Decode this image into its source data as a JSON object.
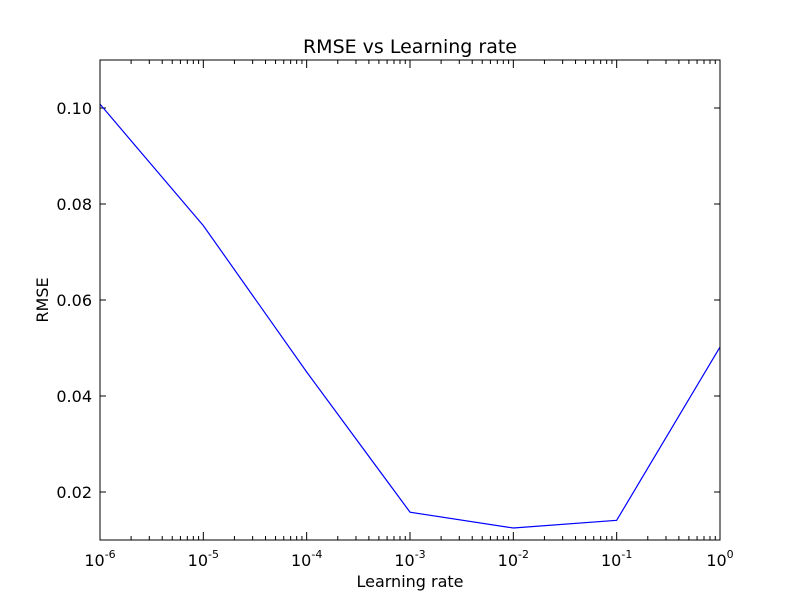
{
  "chart_data": {
    "type": "line",
    "title": "RMSE vs Learning rate",
    "xlabel": "Learning rate",
    "ylabel": "RMSE",
    "xscale": "log",
    "xlim": [
      1e-06,
      1
    ],
    "ylim": [
      0.01,
      0.11
    ],
    "grid": false,
    "legend": "none",
    "x_ticks": [
      {
        "value": 1e-06,
        "base": "10",
        "exp": "-6"
      },
      {
        "value": 1e-05,
        "base": "10",
        "exp": "-5"
      },
      {
        "value": 0.0001,
        "base": "10",
        "exp": "-4"
      },
      {
        "value": 0.001,
        "base": "10",
        "exp": "-3"
      },
      {
        "value": 0.01,
        "base": "10",
        "exp": "-2"
      },
      {
        "value": 0.1,
        "base": "10",
        "exp": "-1"
      },
      {
        "value": 1,
        "base": "10",
        "exp": "0"
      }
    ],
    "y_ticks": [
      {
        "value": 0.02,
        "label": "0.02"
      },
      {
        "value": 0.04,
        "label": "0.04"
      },
      {
        "value": 0.06,
        "label": "0.06"
      },
      {
        "value": 0.08,
        "label": "0.08"
      },
      {
        "value": 0.1,
        "label": "0.10"
      }
    ],
    "series": [
      {
        "color": "#0000ff",
        "x": [
          1e-06,
          1e-05,
          0.0001,
          0.001,
          0.01,
          0.1,
          1
        ],
        "y": [
          0.1008,
          0.0755,
          0.045,
          0.0158,
          0.0125,
          0.0141,
          0.0502
        ]
      }
    ]
  }
}
